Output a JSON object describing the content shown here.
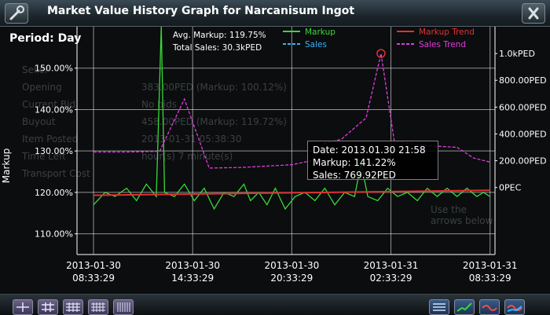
{
  "window": {
    "title": "Market Value History Graph for Narcanisum Ingot"
  },
  "period": {
    "label": "Period: Day"
  },
  "background_panel": {
    "rows": [
      "Seller",
      "Opening",
      "Current Bid",
      "Buyout",
      "Item Posted",
      "Time Left",
      "Transport Cost"
    ],
    "values": [
      "383.00PED (Markup: 100.12%)",
      "No bids",
      "458.00PED (Markup: 119.72%)",
      "2013-01-31 05:38:30",
      "hour(s) 7 minute(s)"
    ],
    "bottom_hint": "Use the arrows below"
  },
  "chart_data": {
    "type": "line",
    "ylabel": "Markup",
    "xlabel": "",
    "x_ticks": [
      "2013-01-30 08:33:29",
      "2013-01-30 14:33:29",
      "2013-01-30 20:33:29",
      "2013-01-31 02:33:29",
      "2013-01-31 08:33:29"
    ],
    "y_left_ticks": [
      "110.00%",
      "120.00%",
      "130.00%",
      "140.00%",
      "150.00%"
    ],
    "y_left_range": [
      105,
      160
    ],
    "y_right_ticks": [
      "0PEC",
      "200.00PED",
      "400.00PED",
      "600.00PED",
      "800.00PED",
      "1.0kPED"
    ],
    "y_right_range": [
      -500,
      1200
    ],
    "summary": {
      "avg_markup": "Avg. Markup: 119.75%",
      "total_sales": "Total Sales: 30.3kPED"
    },
    "legend": [
      {
        "name": "Markup",
        "color": "#3ad83a",
        "style": "solid"
      },
      {
        "name": "Sales",
        "color": "#35b4ff",
        "style": "dashed"
      },
      {
        "name": "Markup Trend",
        "color": "#e03232",
        "style": "solid"
      },
      {
        "name": "Sales Trend",
        "color": "#e33ae0",
        "style": "dashed"
      }
    ],
    "x_hours_range": [
      -1,
      24.3
    ],
    "series": [
      {
        "name": "Markup",
        "color": "#3ad83a",
        "points": [
          [
            0,
            117
          ],
          [
            0.7,
            120
          ],
          [
            1.3,
            119
          ],
          [
            2.0,
            121
          ],
          [
            2.6,
            118
          ],
          [
            3.2,
            122
          ],
          [
            3.8,
            119
          ],
          [
            4.1,
            160
          ],
          [
            4.3,
            120
          ],
          [
            4.9,
            119
          ],
          [
            5.5,
            122
          ],
          [
            6.1,
            118
          ],
          [
            6.7,
            121
          ],
          [
            7.3,
            116
          ],
          [
            7.9,
            120
          ],
          [
            8.5,
            119
          ],
          [
            9.1,
            122
          ],
          [
            9.5,
            118
          ],
          [
            10.0,
            120
          ],
          [
            10.5,
            117
          ],
          [
            11.0,
            121
          ],
          [
            11.6,
            116
          ],
          [
            12.2,
            119
          ],
          [
            12.8,
            120
          ],
          [
            13.4,
            118
          ],
          [
            14.0,
            121
          ],
          [
            14.6,
            117
          ],
          [
            15.2,
            120
          ],
          [
            15.8,
            119
          ],
          [
            16.2,
            127
          ],
          [
            16.6,
            119
          ],
          [
            17.2,
            118
          ],
          [
            17.8,
            121
          ],
          [
            18.4,
            119
          ],
          [
            19.0,
            120
          ],
          [
            19.6,
            118
          ],
          [
            20.2,
            121
          ],
          [
            20.8,
            119
          ],
          [
            21.4,
            121
          ],
          [
            22.0,
            119
          ],
          [
            22.6,
            121
          ],
          [
            23.2,
            119
          ],
          [
            23.6,
            120
          ],
          [
            24.0,
            119
          ]
        ]
      },
      {
        "name": "Sales Trend",
        "color": "#e33ae0",
        "points": [
          [
            0,
            265
          ],
          [
            2,
            265
          ],
          [
            4.0,
            270
          ],
          [
            5.5,
            660
          ],
          [
            7.0,
            145
          ],
          [
            9.0,
            150
          ],
          [
            12.0,
            170
          ],
          [
            13.2,
            200
          ],
          [
            14.0,
            330
          ],
          [
            15.0,
            360
          ],
          [
            16.5,
            520
          ],
          [
            17.4,
            1000
          ],
          [
            18.2,
            350
          ],
          [
            19.5,
            320
          ],
          [
            20.5,
            310
          ],
          [
            22.0,
            300
          ],
          [
            23.0,
            220
          ],
          [
            24.0,
            190
          ]
        ]
      },
      {
        "name": "Markup Trend",
        "color": "#e03232",
        "points": [
          [
            0,
            119.3
          ],
          [
            24,
            120.5
          ]
        ]
      }
    ],
    "highlight_point": {
      "x_hours": 17.4,
      "y_sales": 1000
    }
  },
  "tooltip": {
    "date": "Date: 2013.01.30 21:58",
    "markup": "Markup: 141.22%",
    "sales": "Sales: 769.92PED"
  },
  "toolbar": {
    "left_buttons": [
      "grid-1",
      "grid-2",
      "grid-3",
      "grid-4",
      "grid-5"
    ],
    "right_buttons": [
      "list",
      "markup",
      "sales",
      "combo"
    ]
  }
}
